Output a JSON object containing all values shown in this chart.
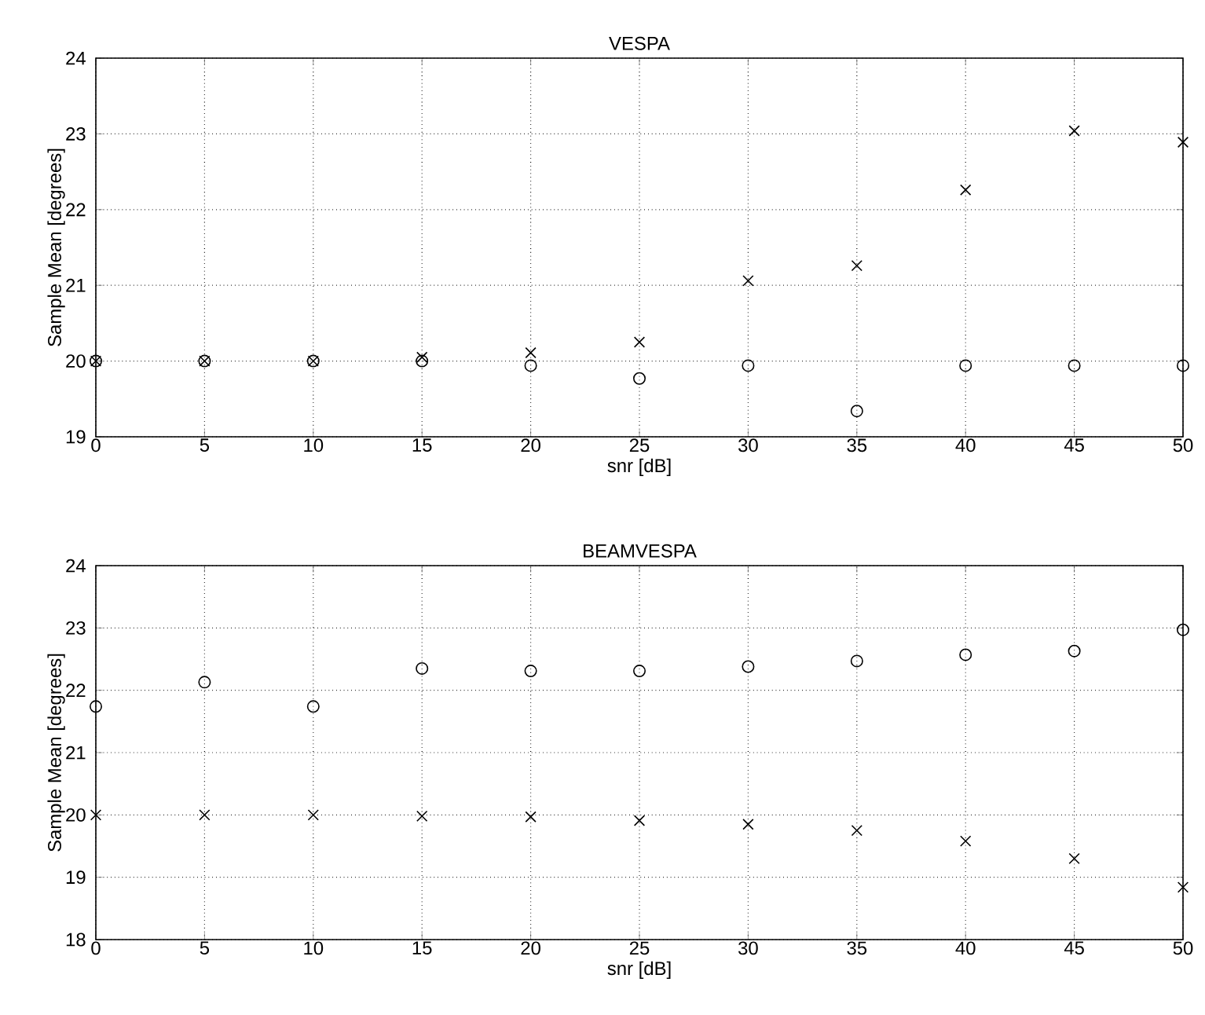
{
  "chart_data": [
    {
      "type": "scatter",
      "title": "VESPA",
      "xlabel": "snr [dB]",
      "ylabel": "Sample Mean [degrees]",
      "x": [
        0,
        5,
        10,
        15,
        20,
        25,
        30,
        35,
        40,
        45,
        50
      ],
      "xlim": [
        0,
        50
      ],
      "xticks": [
        0,
        5,
        10,
        15,
        20,
        25,
        30,
        35,
        40,
        45,
        50
      ],
      "ylim": [
        19,
        24
      ],
      "yticks": [
        19,
        20,
        21,
        22,
        23,
        24
      ],
      "grid": true,
      "series": [
        {
          "color": "#000000",
          "marker": "circle",
          "values": [
            20,
            20,
            20,
            20,
            19.94,
            19.77,
            19.94,
            19.34,
            19.94,
            19.94,
            19.94
          ]
        },
        {
          "color": "#000000",
          "marker": "cross",
          "values": [
            20,
            20,
            20,
            20.05,
            20.11,
            20.25,
            21.06,
            21.26,
            22.26,
            23.04,
            22.89
          ]
        }
      ]
    },
    {
      "type": "scatter",
      "title": "BEAMVESPA",
      "xlabel": "snr [dB]",
      "ylabel": "Sample Mean [degrees]",
      "x": [
        0,
        5,
        10,
        15,
        20,
        25,
        30,
        35,
        40,
        45,
        50
      ],
      "xlim": [
        0,
        50
      ],
      "xticks": [
        0,
        5,
        10,
        15,
        20,
        25,
        30,
        35,
        40,
        45,
        50
      ],
      "ylim": [
        18,
        24
      ],
      "yticks": [
        18,
        19,
        20,
        21,
        22,
        23,
        24
      ],
      "grid": true,
      "series": [
        {
          "color": "#000000",
          "marker": "circle",
          "values": [
            21.74,
            22.13,
            21.74,
            22.35,
            22.31,
            22.31,
            22.38,
            22.47,
            22.57,
            22.63,
            22.97
          ]
        },
        {
          "color": "#000000",
          "marker": "cross",
          "values": [
            20,
            20,
            20,
            19.98,
            19.97,
            19.91,
            19.85,
            19.75,
            19.58,
            19.3,
            18.84
          ]
        }
      ]
    }
  ]
}
